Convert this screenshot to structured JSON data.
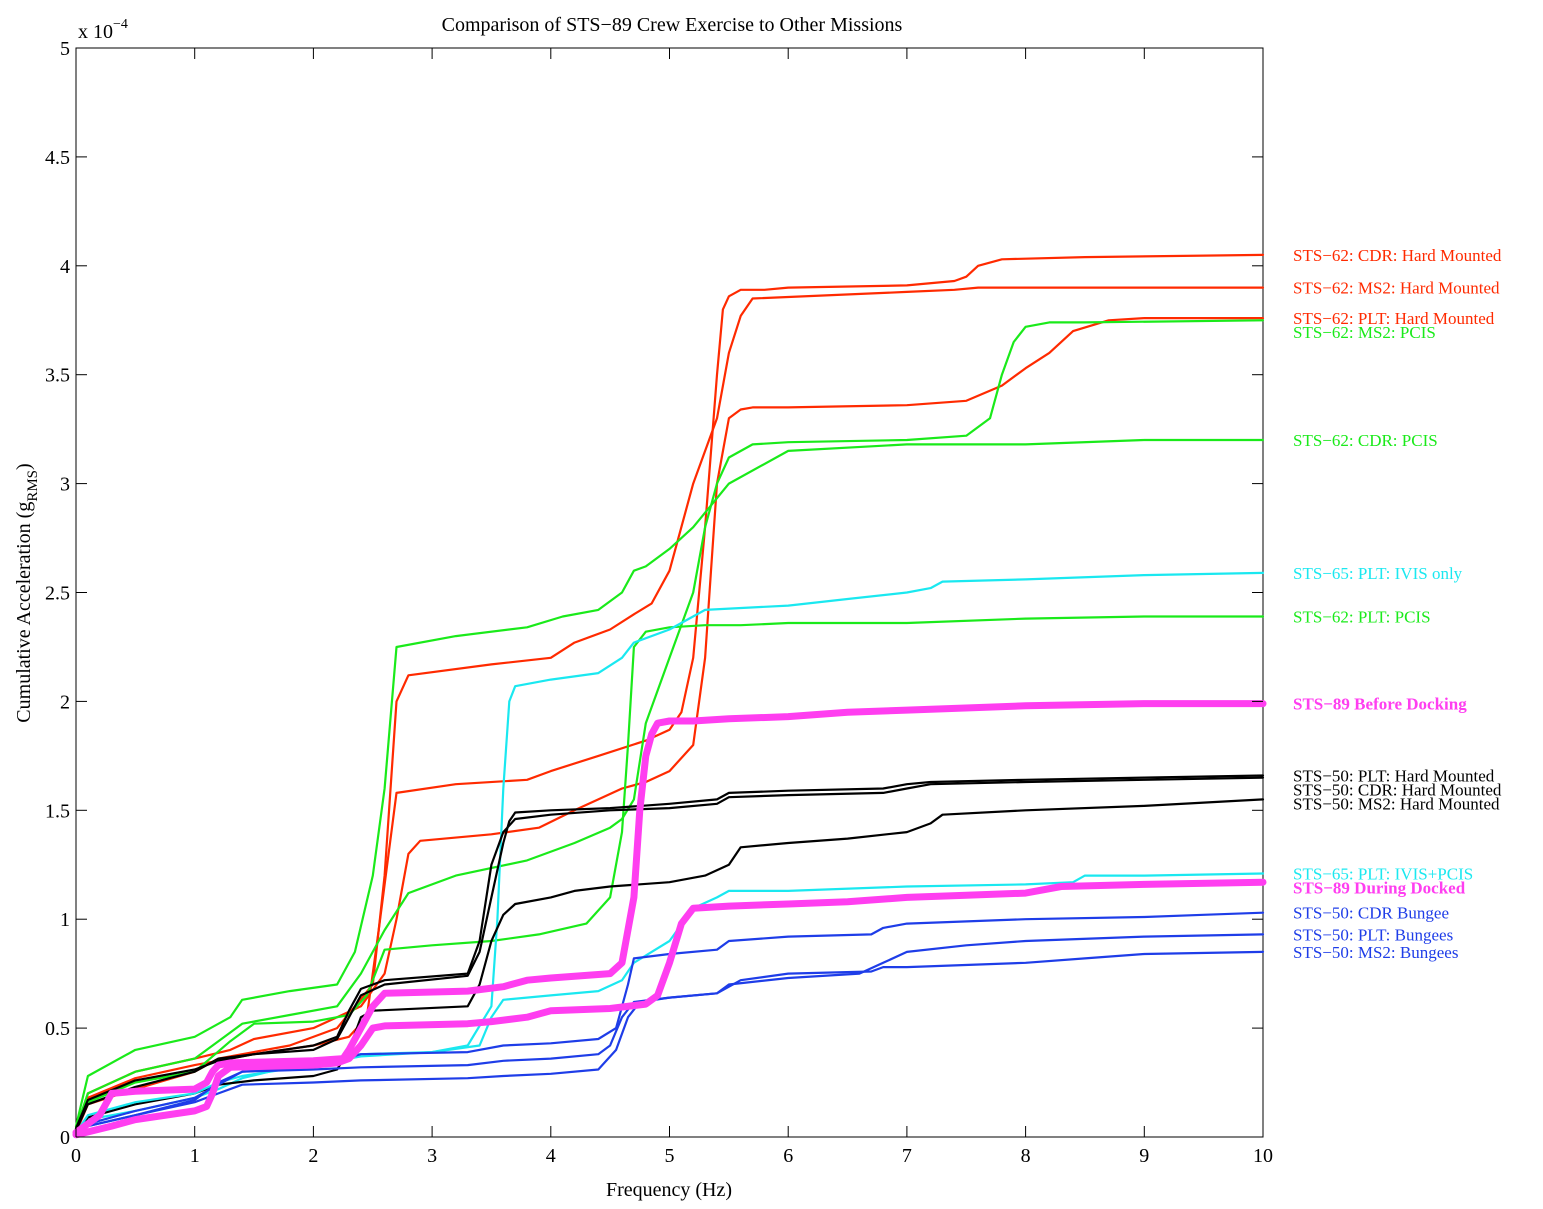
{
  "chart_data": {
    "type": "line",
    "title": "Comparison of STS−89 Crew Exercise to Other Missions",
    "xlabel": "Frequency (Hz)",
    "ylabel": {
      "main": "Cumulative Acceleration (g",
      "sub": "RMS",
      "close": ")"
    },
    "y_exponent": {
      "base": "x 10",
      "power": "−4"
    },
    "xlim": [
      0,
      10
    ],
    "ylim": [
      0,
      5
    ],
    "x_ticks": [
      0,
      1,
      2,
      3,
      4,
      5,
      6,
      7,
      8,
      9,
      10
    ],
    "x_tick_labels": [
      "0",
      "1",
      "2",
      "3",
      "4",
      "5",
      "6",
      "7",
      "8",
      "9",
      "10"
    ],
    "y_ticks": [
      0,
      0.5,
      1,
      1.5,
      2,
      2.5,
      3,
      3.5,
      4,
      4.5,
      5
    ],
    "y_tick_labels": [
      "0",
      "0.5",
      "1",
      "1.5",
      "2",
      "2.5",
      "3",
      "3.5",
      "4",
      "4.5",
      "5"
    ],
    "grid": false,
    "legend_placement": "right, beside line ends",
    "series": [
      {
        "name": "STS−62: CDR: Hard Mounted",
        "color": "#ff2a00",
        "width": 2.2,
        "bold": false,
        "x": [
          0,
          0.1,
          0.5,
          1,
          1.3,
          1.5,
          2,
          2.3,
          2.45,
          2.55,
          2.7,
          3.2,
          3.8,
          4,
          4.4,
          4.8,
          5,
          5.1,
          5.2,
          5.3,
          5.4,
          5.45,
          5.5,
          5.6,
          5.8,
          6,
          7,
          7.4,
          7.5,
          7.6,
          7.8,
          8.5,
          10
        ],
        "y": [
          0.03,
          0.18,
          0.27,
          0.33,
          0.36,
          0.38,
          0.42,
          0.46,
          0.55,
          0.95,
          1.58,
          1.62,
          1.64,
          1.68,
          1.75,
          1.82,
          1.87,
          1.95,
          2.2,
          2.8,
          3.5,
          3.8,
          3.86,
          3.89,
          3.89,
          3.9,
          3.91,
          3.93,
          3.95,
          4.0,
          4.03,
          4.04,
          4.05
        ]
      },
      {
        "name": "STS−62: MS2: Hard Mounted",
        "color": "#ff2a00",
        "width": 2.2,
        "bold": false,
        "x": [
          0,
          0.1,
          0.5,
          1,
          1.2,
          1.4,
          1.8,
          2.2,
          2.5,
          2.6,
          2.7,
          2.8,
          3.5,
          4,
          4.2,
          4.5,
          4.7,
          4.85,
          4.95,
          5.0,
          5.05,
          5.2,
          5.3,
          5.4,
          5.5,
          5.6,
          7,
          7.5,
          7.8,
          8,
          8.2,
          8.5,
          8.7,
          9,
          10
        ],
        "y": [
          0.02,
          0.15,
          0.22,
          0.3,
          0.36,
          0.38,
          0.42,
          0.5,
          0.7,
          1.2,
          2.0,
          2.12,
          2.17,
          2.2,
          2.27,
          2.33,
          2.4,
          2.45,
          2.6,
          3.0,
          3.3,
          3.6,
          3.77,
          3.85,
          3.88,
          3.89,
          3.9,
          3.9,
          3.9,
          3.9,
          3.9,
          3.9,
          3.9,
          3.9,
          3.9
        ],
        "x_override": [
          0,
          0.1,
          0.5,
          1,
          1.2,
          1.4,
          1.8,
          2.2,
          2.5,
          2.6,
          2.7,
          2.8,
          3.5,
          4,
          4.2,
          4.5,
          4.7,
          4.85,
          5.0,
          5.2,
          5.4,
          5.5,
          5.6,
          5.7,
          7,
          7.4,
          7.6,
          7.8,
          8,
          8.2,
          8.4,
          8.6,
          8.8,
          9,
          10
        ]
      },
      {
        "name": "STS−62: PLT: Hard Mounted",
        "color": "#ff2a00",
        "width": 2.2,
        "bold": false,
        "x": [
          0,
          0.1,
          0.5,
          1,
          1.3,
          1.5,
          2,
          2.4,
          2.6,
          2.7,
          2.8,
          2.9,
          3.5,
          3.9,
          4.2,
          4.4,
          4.6,
          4.8,
          5.0,
          5.2,
          5.3,
          5.35,
          5.4,
          5.5,
          5.6,
          5.7,
          6,
          7,
          7.5,
          7.8,
          8.0,
          8.2,
          8.4,
          8.7,
          9,
          10
        ],
        "y": [
          0.03,
          0.2,
          0.3,
          0.36,
          0.4,
          0.45,
          0.5,
          0.6,
          0.75,
          1.0,
          1.3,
          1.36,
          1.39,
          1.42,
          1.5,
          1.55,
          1.6,
          1.63,
          1.68,
          1.8,
          2.2,
          2.6,
          3.0,
          3.3,
          3.34,
          3.35,
          3.35,
          3.36,
          3.38,
          3.45,
          3.53,
          3.6,
          3.7,
          3.75,
          3.76,
          3.76
        ]
      },
      {
        "name": "STS−62: MS2: PCIS",
        "color": "#1aea1a",
        "width": 2.2,
        "bold": false,
        "x": [
          0,
          0.1,
          0.5,
          1,
          1.2,
          1.4,
          1.8,
          2.2,
          2.4,
          2.6,
          2.8,
          3.2,
          3.8,
          4.2,
          4.5,
          4.6,
          4.7,
          4.8,
          5.0,
          5.2,
          5.3,
          5.4,
          5.5,
          5.7,
          6,
          7,
          7.5,
          7.7,
          7.8,
          7.9,
          8.0,
          8.2,
          8.5,
          10
        ],
        "y": [
          0.04,
          0.2,
          0.3,
          0.36,
          0.44,
          0.52,
          0.56,
          0.6,
          0.75,
          0.95,
          1.12,
          1.2,
          1.27,
          1.35,
          1.42,
          1.46,
          1.55,
          1.9,
          2.2,
          2.5,
          2.8,
          3.0,
          3.12,
          3.18,
          3.19,
          3.2,
          3.22,
          3.3,
          3.5,
          3.65,
          3.72,
          3.74,
          3.74,
          3.75
        ]
      },
      {
        "name": "STS−62: CDR: PCIS",
        "color": "#1aea1a",
        "width": 2.2,
        "bold": false,
        "x": [
          0,
          0.1,
          0.5,
          1,
          1.3,
          1.4,
          1.8,
          2.2,
          2.35,
          2.5,
          2.6,
          2.7,
          3.2,
          3.8,
          4.1,
          4.4,
          4.6,
          4.7,
          4.8,
          5.0,
          5.2,
          5.5,
          6,
          7,
          8,
          9,
          10
        ],
        "y": [
          0.05,
          0.28,
          0.4,
          0.46,
          0.55,
          0.63,
          0.67,
          0.7,
          0.85,
          1.2,
          1.6,
          2.25,
          2.3,
          2.34,
          2.39,
          2.42,
          2.5,
          2.6,
          2.62,
          2.7,
          2.8,
          3.0,
          3.15,
          3.18,
          3.18,
          3.2,
          3.2
        ]
      },
      {
        "name": "STS−62: PLT: PCIS",
        "color": "#1aea1a",
        "width": 2.2,
        "bold": false,
        "x": [
          0,
          0.1,
          0.5,
          1,
          1.3,
          1.5,
          2,
          2.3,
          2.45,
          2.6,
          3,
          3.5,
          3.9,
          4.3,
          4.5,
          4.6,
          4.65,
          4.7,
          4.8,
          5.0,
          5.3,
          5.6,
          6,
          7,
          8,
          9,
          10
        ],
        "y": [
          0.03,
          0.16,
          0.25,
          0.3,
          0.44,
          0.52,
          0.53,
          0.56,
          0.65,
          0.86,
          0.88,
          0.9,
          0.93,
          0.98,
          1.1,
          1.4,
          1.8,
          2.25,
          2.32,
          2.34,
          2.35,
          2.35,
          2.36,
          2.36,
          2.38,
          2.39,
          2.39
        ]
      },
      {
        "name": "STS−65: PLT: IVIS only",
        "color": "#1ae8f0",
        "width": 2.2,
        "bold": false,
        "x": [
          0,
          0.1,
          0.5,
          1,
          1.2,
          1.4,
          2,
          2.4,
          3.0,
          3.3,
          3.5,
          3.55,
          3.6,
          3.65,
          3.7,
          4,
          4.4,
          4.6,
          4.7,
          5.0,
          5.3,
          6,
          6.5,
          7,
          7.2,
          7.3,
          8,
          9,
          10
        ],
        "y": [
          0.02,
          0.08,
          0.12,
          0.18,
          0.22,
          0.27,
          0.35,
          0.38,
          0.39,
          0.42,
          0.6,
          1.0,
          1.6,
          2.0,
          2.07,
          2.1,
          2.13,
          2.2,
          2.27,
          2.33,
          2.42,
          2.44,
          2.47,
          2.5,
          2.52,
          2.55,
          2.56,
          2.58,
          2.59
        ]
      },
      {
        "name": "STS−89 Before Docking",
        "color": "#ff3ef0",
        "width": 7,
        "bold": true,
        "x": [
          0,
          0.2,
          0.3,
          0.5,
          1,
          1.1,
          1.15,
          1.2,
          1.3,
          2,
          2.25,
          2.3,
          2.4,
          2.5,
          2.6,
          3.3,
          3.6,
          3.8,
          4.0,
          4.5,
          4.6,
          4.7,
          4.75,
          4.8,
          4.85,
          4.9,
          5.0,
          5.2,
          5.5,
          6,
          6.5,
          7,
          8,
          9,
          10
        ],
        "y": [
          0.02,
          0.1,
          0.2,
          0.21,
          0.22,
          0.25,
          0.3,
          0.33,
          0.34,
          0.35,
          0.36,
          0.4,
          0.5,
          0.6,
          0.66,
          0.67,
          0.69,
          0.72,
          0.73,
          0.75,
          0.8,
          1.1,
          1.5,
          1.75,
          1.85,
          1.9,
          1.91,
          1.91,
          1.92,
          1.93,
          1.95,
          1.96,
          1.98,
          1.99,
          1.99
        ]
      },
      {
        "name": "STS−50: PLT: Hard Mounted",
        "color": "#000000",
        "width": 2.2,
        "bold": false,
        "x": [
          0,
          0.1,
          0.5,
          1,
          1.2,
          1.5,
          2,
          2.2,
          2.3,
          2.4,
          2.6,
          3.3,
          3.4,
          3.5,
          3.6,
          3.65,
          3.7,
          4,
          4.5,
          5,
          5.4,
          5.5,
          6,
          6.8,
          7,
          7.2,
          8,
          9,
          10
        ],
        "y": [
          0.04,
          0.17,
          0.26,
          0.31,
          0.35,
          0.38,
          0.4,
          0.45,
          0.55,
          0.65,
          0.7,
          0.74,
          0.85,
          1.1,
          1.35,
          1.45,
          1.49,
          1.5,
          1.51,
          1.53,
          1.55,
          1.58,
          1.59,
          1.6,
          1.62,
          1.63,
          1.64,
          1.65,
          1.66
        ]
      },
      {
        "name": "STS−50: CDR: Hard Mounted",
        "color": "#000000",
        "width": 2.2,
        "bold": false,
        "x": [
          0,
          0.1,
          0.5,
          1,
          1.2,
          1.5,
          2,
          2.2,
          2.3,
          2.4,
          2.6,
          3.3,
          3.4,
          3.5,
          3.6,
          3.7,
          4,
          4.5,
          5,
          5.4,
          5.5,
          6,
          6.8,
          7,
          7.2,
          8,
          9,
          10
        ],
        "y": [
          0.03,
          0.15,
          0.23,
          0.3,
          0.36,
          0.38,
          0.42,
          0.46,
          0.58,
          0.68,
          0.72,
          0.75,
          0.9,
          1.25,
          1.4,
          1.46,
          1.48,
          1.5,
          1.51,
          1.53,
          1.56,
          1.57,
          1.58,
          1.6,
          1.62,
          1.63,
          1.64,
          1.65
        ]
      },
      {
        "name": "STS−50: MS2: Hard Mounted",
        "color": "#000000",
        "width": 2.2,
        "bold": false,
        "x": [
          0,
          0.1,
          0.5,
          1,
          1.2,
          1.5,
          2,
          2.2,
          2.3,
          2.4,
          2.5,
          3.3,
          3.4,
          3.5,
          3.6,
          3.7,
          4,
          4.2,
          4.5,
          5,
          5.3,
          5.5,
          5.6,
          6,
          6.5,
          7,
          7.2,
          7.3,
          8,
          9,
          10
        ],
        "y": [
          0.02,
          0.09,
          0.15,
          0.2,
          0.24,
          0.26,
          0.28,
          0.31,
          0.4,
          0.55,
          0.58,
          0.6,
          0.7,
          0.9,
          1.02,
          1.07,
          1.1,
          1.13,
          1.15,
          1.17,
          1.2,
          1.25,
          1.33,
          1.35,
          1.37,
          1.4,
          1.44,
          1.48,
          1.5,
          1.52,
          1.55
        ]
      },
      {
        "name": "STS−65: PLT: IVIS+PCIS",
        "color": "#1ae8f0",
        "width": 2.2,
        "bold": false,
        "x": [
          0,
          0.1,
          0.5,
          1,
          1.2,
          1.4,
          2,
          2.4,
          3.0,
          3.4,
          3.5,
          3.6,
          4,
          4.4,
          4.6,
          4.7,
          5.0,
          5.2,
          5.4,
          5.5,
          6,
          7,
          8,
          8.4,
          8.5,
          9,
          10
        ],
        "y": [
          0.02,
          0.1,
          0.16,
          0.2,
          0.25,
          0.28,
          0.33,
          0.37,
          0.39,
          0.42,
          0.55,
          0.63,
          0.65,
          0.67,
          0.72,
          0.8,
          0.9,
          1.05,
          1.1,
          1.13,
          1.13,
          1.15,
          1.16,
          1.17,
          1.2,
          1.2,
          1.21
        ]
      },
      {
        "name": "STS−89 During Docked",
        "color": "#ff3ef0",
        "width": 7,
        "bold": true,
        "x": [
          0,
          0.3,
          0.5,
          1,
          1.1,
          1.15,
          1.2,
          1.3,
          2,
          2.2,
          2.3,
          2.4,
          2.5,
          2.6,
          3.3,
          3.5,
          3.8,
          4.0,
          4.5,
          4.8,
          4.9,
          5.0,
          5.1,
          5.2,
          5.5,
          6,
          6.5,
          7,
          7.5,
          8,
          8.3,
          9,
          10
        ],
        "y": [
          0.01,
          0.05,
          0.08,
          0.12,
          0.14,
          0.2,
          0.28,
          0.32,
          0.33,
          0.34,
          0.36,
          0.42,
          0.5,
          0.51,
          0.52,
          0.53,
          0.55,
          0.58,
          0.59,
          0.61,
          0.65,
          0.8,
          0.98,
          1.05,
          1.06,
          1.07,
          1.08,
          1.1,
          1.11,
          1.12,
          1.15,
          1.16,
          1.17
        ]
      },
      {
        "name": "STS−50: CDR Bungee",
        "color": "#1e3de8",
        "width": 2.2,
        "bold": false,
        "x": [
          0,
          0.1,
          0.5,
          1,
          1.2,
          1.4,
          2,
          2.4,
          3.3,
          3.6,
          4.0,
          4.4,
          4.55,
          4.65,
          4.7,
          5.0,
          5.4,
          5.5,
          6,
          6.7,
          6.8,
          7,
          8,
          9,
          9.5,
          10
        ],
        "y": [
          0.01,
          0.05,
          0.1,
          0.17,
          0.25,
          0.3,
          0.32,
          0.38,
          0.39,
          0.42,
          0.43,
          0.45,
          0.5,
          0.7,
          0.82,
          0.84,
          0.86,
          0.9,
          0.92,
          0.93,
          0.96,
          0.98,
          1.0,
          1.01,
          1.02,
          1.03
        ]
      },
      {
        "name": "STS−50: PLT: Bungees",
        "color": "#1e3de8",
        "width": 2.2,
        "bold": false,
        "x": [
          0,
          0.1,
          0.5,
          1,
          1.2,
          1.4,
          2,
          2.4,
          3.3,
          3.6,
          4.0,
          4.4,
          4.5,
          4.6,
          4.7,
          5.0,
          5.4,
          5.5,
          6,
          6.6,
          6.8,
          7,
          7.5,
          8,
          9,
          10
        ],
        "y": [
          0.01,
          0.06,
          0.12,
          0.18,
          0.24,
          0.3,
          0.31,
          0.32,
          0.33,
          0.35,
          0.36,
          0.38,
          0.42,
          0.55,
          0.62,
          0.64,
          0.66,
          0.7,
          0.73,
          0.75,
          0.8,
          0.85,
          0.88,
          0.9,
          0.92,
          0.93
        ]
      },
      {
        "name": "STS−50: MS2: Bungees",
        "color": "#1e3de8",
        "width": 2.2,
        "bold": false,
        "x": [
          0,
          0.1,
          0.5,
          1,
          1.2,
          1.4,
          2,
          2.4,
          3.3,
          3.6,
          4.0,
          4.4,
          4.55,
          4.65,
          4.75,
          5.0,
          5.4,
          5.6,
          6,
          6.7,
          6.8,
          7,
          8,
          8.5,
          9,
          10
        ],
        "y": [
          0.01,
          0.05,
          0.1,
          0.16,
          0.2,
          0.24,
          0.25,
          0.26,
          0.27,
          0.28,
          0.29,
          0.31,
          0.4,
          0.55,
          0.62,
          0.64,
          0.66,
          0.72,
          0.75,
          0.76,
          0.78,
          0.78,
          0.8,
          0.82,
          0.84,
          0.85
        ]
      }
    ]
  }
}
